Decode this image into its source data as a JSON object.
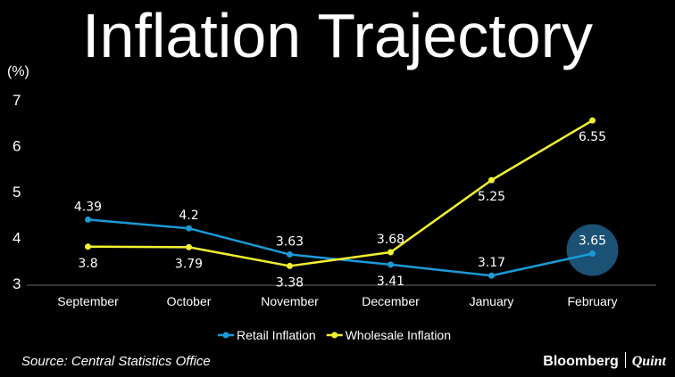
{
  "chart_data": {
    "type": "line",
    "title": "Inflation Trajectory",
    "ylabel": "(%)",
    "xlabel": "",
    "categories": [
      "September",
      "October",
      "November",
      "December",
      "January",
      "February"
    ],
    "ylim": [
      3,
      7
    ],
    "yticks": [
      "3",
      "4",
      "5",
      "6",
      "7"
    ],
    "grid": false,
    "legend_position": "bottom",
    "series": [
      {
        "name": "Retail Inflation",
        "color": "#1b9ad6",
        "values": [
          4.39,
          4.2,
          3.63,
          3.41,
          3.17,
          3.65
        ],
        "labels": [
          "4.39",
          "4.2",
          "3.63",
          "3.41",
          "3.17",
          "3.65"
        ],
        "label_side": [
          "above",
          "above",
          "above",
          "below",
          "above",
          "above"
        ]
      },
      {
        "name": "Wholesale Inflation",
        "color": "#f2f230",
        "values": [
          3.8,
          3.79,
          3.38,
          3.68,
          5.25,
          6.55
        ],
        "labels": [
          "3.8",
          "3.79",
          "3.38",
          "3.68",
          "5.25",
          "6.55"
        ],
        "label_side": [
          "below",
          "below",
          "below",
          "above",
          "below",
          "below"
        ]
      }
    ],
    "highlight": {
      "series": 0,
      "category": "February",
      "color": "#1e5f8a"
    }
  },
  "footer": {
    "source": "Source: Central Statistics Office",
    "brand_left": "Bloomberg",
    "brand_right": "Quint"
  }
}
